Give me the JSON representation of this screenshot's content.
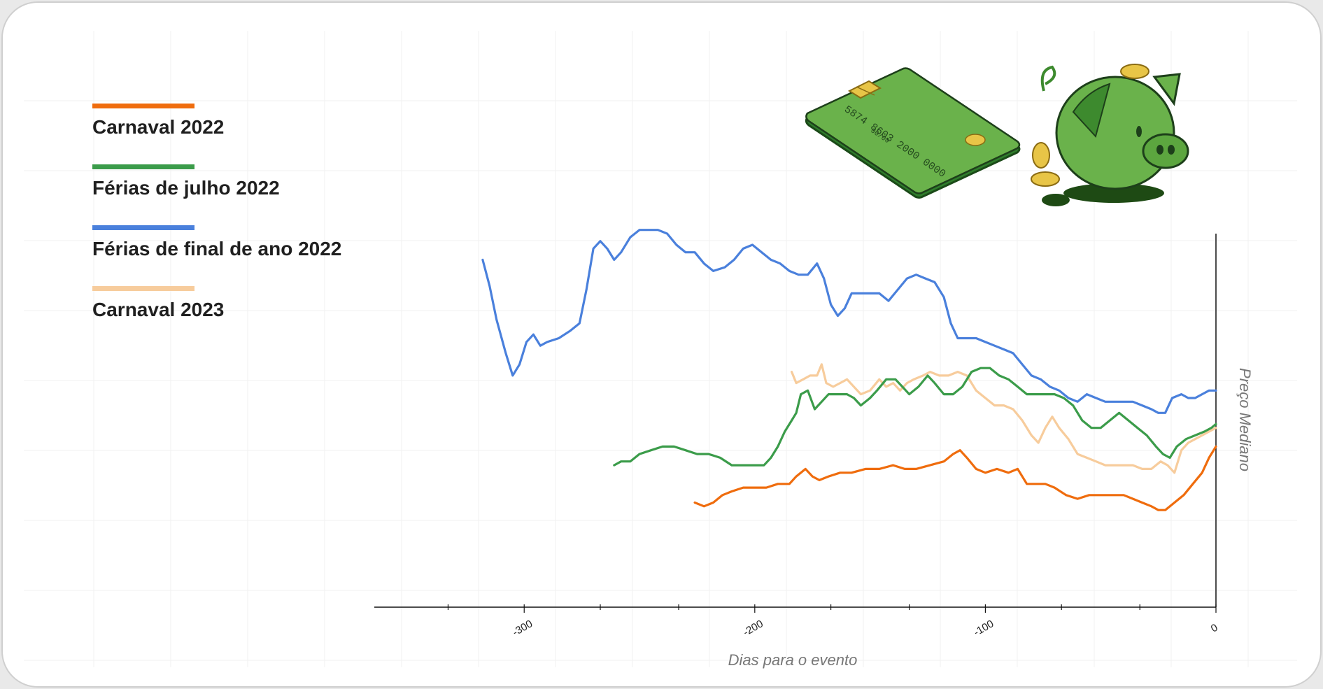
{
  "chart_data": {
    "type": "line",
    "xlabel": "Dias para o evento",
    "ylabel": "Preço Mediano",
    "xlim": [
      -365,
      0
    ],
    "ylim": [
      0,
      100
    ],
    "y_tick_labels_shown": false,
    "x_ticks": [
      {
        "value": -300,
        "label": "-300"
      },
      {
        "value": -200,
        "label": "-200"
      },
      {
        "value": -100,
        "label": "-100"
      },
      {
        "value": 0,
        "label": "0"
      }
    ],
    "x_minor_ticks": [
      -333,
      -267,
      -233,
      -167,
      -133,
      -67,
      -33
    ],
    "grid": true,
    "legend_position": "top-left",
    "series": [
      {
        "name": "Carnaval 2022",
        "color": "#ef6c0d",
        "points": [
          [
            -226,
            28
          ],
          [
            -222,
            27
          ],
          [
            -218,
            28
          ],
          [
            -214,
            30
          ],
          [
            -210,
            31
          ],
          [
            -205,
            32
          ],
          [
            -200,
            32
          ],
          [
            -195,
            32
          ],
          [
            -190,
            33
          ],
          [
            -185,
            33
          ],
          [
            -182,
            35
          ],
          [
            -178,
            37
          ],
          [
            -175,
            35
          ],
          [
            -172,
            34
          ],
          [
            -168,
            35
          ],
          [
            -163,
            36
          ],
          [
            -158,
            36
          ],
          [
            -152,
            37
          ],
          [
            -146,
            37
          ],
          [
            -140,
            38
          ],
          [
            -135,
            37
          ],
          [
            -130,
            37
          ],
          [
            -124,
            38
          ],
          [
            -118,
            39
          ],
          [
            -114,
            41
          ],
          [
            -111,
            42
          ],
          [
            -108,
            40
          ],
          [
            -104,
            37
          ],
          [
            -100,
            36
          ],
          [
            -95,
            37
          ],
          [
            -90,
            36
          ],
          [
            -86,
            37
          ],
          [
            -82,
            33
          ],
          [
            -78,
            33
          ],
          [
            -74,
            33
          ],
          [
            -70,
            32
          ],
          [
            -65,
            30
          ],
          [
            -60,
            29
          ],
          [
            -55,
            30
          ],
          [
            -50,
            30
          ],
          [
            -45,
            30
          ],
          [
            -40,
            30
          ],
          [
            -36,
            29
          ],
          [
            -32,
            28
          ],
          [
            -28,
            27
          ],
          [
            -25,
            26
          ],
          [
            -22,
            26
          ],
          [
            -18,
            28
          ],
          [
            -14,
            30
          ],
          [
            -10,
            33
          ],
          [
            -6,
            36
          ],
          [
            -3,
            40
          ],
          [
            0,
            43
          ]
        ]
      },
      {
        "name": "Férias de julho 2022",
        "color": "#3b9c4a",
        "points": [
          [
            -261,
            38
          ],
          [
            -258,
            39
          ],
          [
            -254,
            39
          ],
          [
            -250,
            41
          ],
          [
            -245,
            42
          ],
          [
            -240,
            43
          ],
          [
            -235,
            43
          ],
          [
            -230,
            42
          ],
          [
            -225,
            41
          ],
          [
            -220,
            41
          ],
          [
            -215,
            40
          ],
          [
            -210,
            38
          ],
          [
            -205,
            38
          ],
          [
            -200,
            38
          ],
          [
            -196,
            38
          ],
          [
            -193,
            40
          ],
          [
            -190,
            43
          ],
          [
            -187,
            47
          ],
          [
            -184,
            50
          ],
          [
            -182,
            52
          ],
          [
            -180,
            57
          ],
          [
            -177,
            58
          ],
          [
            -174,
            53
          ],
          [
            -171,
            55
          ],
          [
            -168,
            57
          ],
          [
            -164,
            57
          ],
          [
            -160,
            57
          ],
          [
            -157,
            56
          ],
          [
            -154,
            54
          ],
          [
            -150,
            56
          ],
          [
            -147,
            58
          ],
          [
            -143,
            61
          ],
          [
            -139,
            61
          ],
          [
            -136,
            59
          ],
          [
            -133,
            57
          ],
          [
            -129,
            59
          ],
          [
            -125,
            62
          ],
          [
            -122,
            60
          ],
          [
            -118,
            57
          ],
          [
            -114,
            57
          ],
          [
            -110,
            59
          ],
          [
            -106,
            63
          ],
          [
            -102,
            64
          ],
          [
            -98,
            64
          ],
          [
            -94,
            62
          ],
          [
            -90,
            61
          ],
          [
            -86,
            59
          ],
          [
            -82,
            57
          ],
          [
            -78,
            57
          ],
          [
            -74,
            57
          ],
          [
            -70,
            57
          ],
          [
            -66,
            56
          ],
          [
            -62,
            54
          ],
          [
            -58,
            50
          ],
          [
            -54,
            48
          ],
          [
            -50,
            48
          ],
          [
            -46,
            50
          ],
          [
            -42,
            52
          ],
          [
            -38,
            50
          ],
          [
            -34,
            48
          ],
          [
            -30,
            46
          ],
          [
            -26,
            43
          ],
          [
            -23,
            41
          ],
          [
            -20,
            40
          ],
          [
            -17,
            43
          ],
          [
            -13,
            45
          ],
          [
            -9,
            46
          ],
          [
            -5,
            47
          ],
          [
            -2,
            48
          ],
          [
            0,
            49
          ]
        ]
      },
      {
        "name": "Férias de final de ano 2022",
        "color": "#4a80dc",
        "points": [
          [
            -318,
            93
          ],
          [
            -315,
            86
          ],
          [
            -312,
            77
          ],
          [
            -308,
            68
          ],
          [
            -305,
            62
          ],
          [
            -302,
            65
          ],
          [
            -299,
            71
          ],
          [
            -296,
            73
          ],
          [
            -293,
            70
          ],
          [
            -290,
            71
          ],
          [
            -285,
            72
          ],
          [
            -280,
            74
          ],
          [
            -276,
            76
          ],
          [
            -273,
            85
          ],
          [
            -270,
            96
          ],
          [
            -267,
            98
          ],
          [
            -264,
            96
          ],
          [
            -261,
            93
          ],
          [
            -258,
            95
          ],
          [
            -254,
            99
          ],
          [
            -250,
            101
          ],
          [
            -246,
            101
          ],
          [
            -242,
            101
          ],
          [
            -238,
            100
          ],
          [
            -234,
            97
          ],
          [
            -230,
            95
          ],
          [
            -226,
            95
          ],
          [
            -222,
            92
          ],
          [
            -218,
            90
          ],
          [
            -213,
            91
          ],
          [
            -209,
            93
          ],
          [
            -205,
            96
          ],
          [
            -201,
            97
          ],
          [
            -197,
            95
          ],
          [
            -193,
            93
          ],
          [
            -189,
            92
          ],
          [
            -185,
            90
          ],
          [
            -181,
            89
          ],
          [
            -177,
            89
          ],
          [
            -173,
            92
          ],
          [
            -170,
            88
          ],
          [
            -167,
            81
          ],
          [
            -164,
            78
          ],
          [
            -161,
            80
          ],
          [
            -158,
            84
          ],
          [
            -155,
            84
          ],
          [
            -150,
            84
          ],
          [
            -146,
            84
          ],
          [
            -142,
            82
          ],
          [
            -138,
            85
          ],
          [
            -134,
            88
          ],
          [
            -130,
            89
          ],
          [
            -126,
            88
          ],
          [
            -122,
            87
          ],
          [
            -118,
            83
          ],
          [
            -115,
            76
          ],
          [
            -112,
            72
          ],
          [
            -108,
            72
          ],
          [
            -104,
            72
          ],
          [
            -100,
            71
          ],
          [
            -96,
            70
          ],
          [
            -92,
            69
          ],
          [
            -88,
            68
          ],
          [
            -84,
            65
          ],
          [
            -80,
            62
          ],
          [
            -76,
            61
          ],
          [
            -72,
            59
          ],
          [
            -68,
            58
          ],
          [
            -64,
            56
          ],
          [
            -60,
            55
          ],
          [
            -56,
            57
          ],
          [
            -52,
            56
          ],
          [
            -48,
            55
          ],
          [
            -44,
            55
          ],
          [
            -40,
            55
          ],
          [
            -36,
            55
          ],
          [
            -32,
            54
          ],
          [
            -28,
            53
          ],
          [
            -25,
            52
          ],
          [
            -22,
            52
          ],
          [
            -19,
            56
          ],
          [
            -15,
            57
          ],
          [
            -12,
            56
          ],
          [
            -9,
            56
          ],
          [
            -6,
            57
          ],
          [
            -3,
            58
          ],
          [
            0,
            58
          ]
        ]
      },
      {
        "name": "Carnaval 2023",
        "color": "#f7cc9c",
        "points": [
          [
            -184,
            63
          ],
          [
            -182,
            60
          ],
          [
            -179,
            61
          ],
          [
            -176,
            62
          ],
          [
            -173,
            62
          ],
          [
            -171,
            65
          ],
          [
            -169,
            60
          ],
          [
            -166,
            59
          ],
          [
            -163,
            60
          ],
          [
            -160,
            61
          ],
          [
            -157,
            59
          ],
          [
            -154,
            57
          ],
          [
            -150,
            58
          ],
          [
            -146,
            61
          ],
          [
            -143,
            59
          ],
          [
            -140,
            60
          ],
          [
            -137,
            58
          ],
          [
            -134,
            60
          ],
          [
            -131,
            61
          ],
          [
            -127,
            62
          ],
          [
            -124,
            63
          ],
          [
            -120,
            62
          ],
          [
            -116,
            62
          ],
          [
            -112,
            63
          ],
          [
            -108,
            62
          ],
          [
            -104,
            58
          ],
          [
            -100,
            56
          ],
          [
            -96,
            54
          ],
          [
            -92,
            54
          ],
          [
            -88,
            53
          ],
          [
            -84,
            50
          ],
          [
            -80,
            46
          ],
          [
            -77,
            44
          ],
          [
            -74,
            48
          ],
          [
            -71,
            51
          ],
          [
            -68,
            48
          ],
          [
            -64,
            45
          ],
          [
            -60,
            41
          ],
          [
            -56,
            40
          ],
          [
            -52,
            39
          ],
          [
            -48,
            38
          ],
          [
            -44,
            38
          ],
          [
            -40,
            38
          ],
          [
            -36,
            38
          ],
          [
            -32,
            37
          ],
          [
            -28,
            37
          ],
          [
            -24,
            39
          ],
          [
            -21,
            38
          ],
          [
            -18,
            36
          ],
          [
            -15,
            42
          ],
          [
            -12,
            44
          ],
          [
            -9,
            45
          ],
          [
            -6,
            46
          ],
          [
            -3,
            47
          ],
          [
            0,
            48
          ]
        ]
      }
    ]
  },
  "illustration": {
    "card_number": "5874 8603 2000 0000",
    "card_small_text": "00/00"
  }
}
